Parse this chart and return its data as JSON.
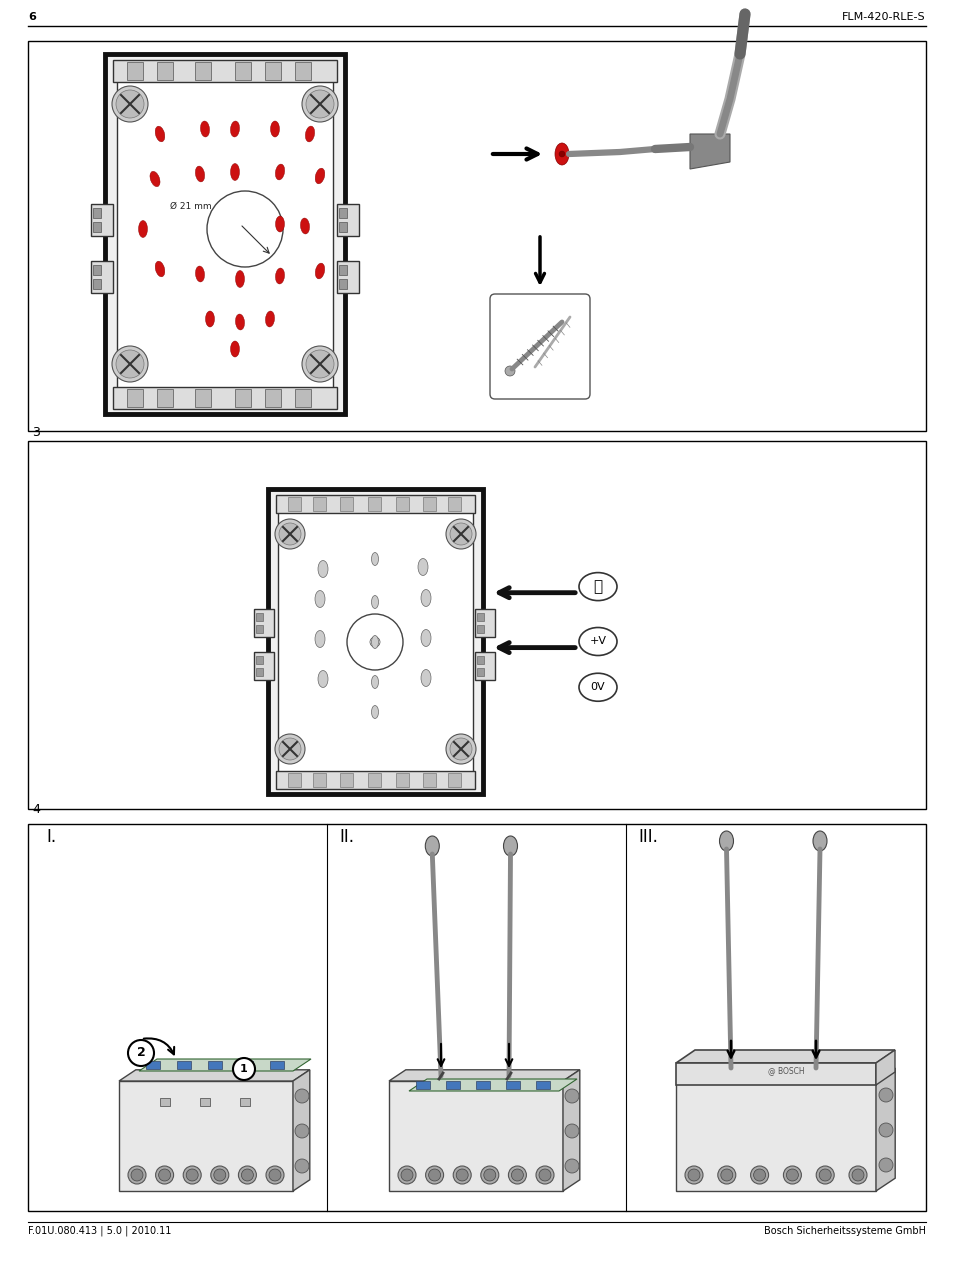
{
  "page_number": "6",
  "product_name": "FLM-420-RLE-S",
  "footer_left": "F.01U.080.413 | 5.0 | 2010.11",
  "footer_right": "Bosch Sicherheitssysteme GmbH",
  "section3_label": "3",
  "section4_label": "4",
  "roman1": "I.",
  "roman2": "II.",
  "roman3": "III.",
  "bg_color": "#ffffff",
  "red_color": "#cc1111",
  "dark_gray": "#444444",
  "mid_gray": "#888888",
  "light_gray": "#cccccc",
  "box_gray": "#e8e8e8",
  "knockout_gray": "#aaaaaa"
}
